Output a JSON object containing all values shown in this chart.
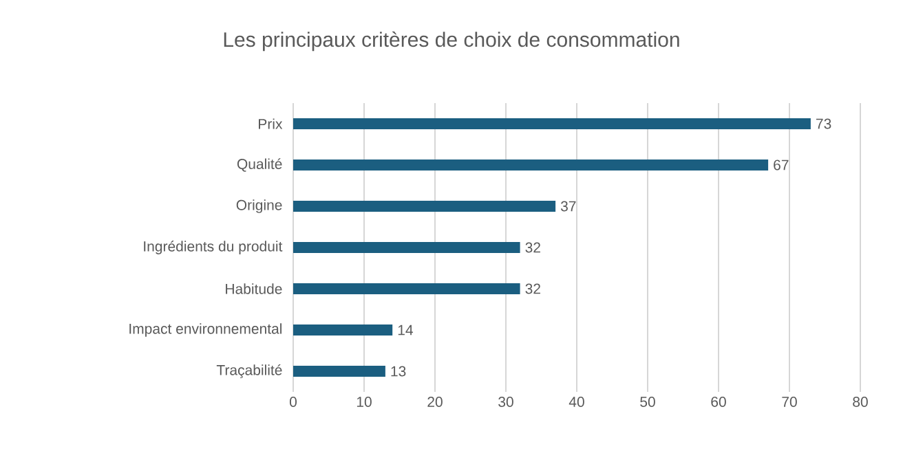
{
  "chart_data": {
    "type": "bar",
    "orientation": "horizontal",
    "title": "Les principaux critères de choix de consommation",
    "categories": [
      "Prix",
      "Qualité",
      "Origine",
      "Ingrédients du produit",
      "Habitude",
      "Impact environnemental",
      "Traçabilité"
    ],
    "values": [
      73,
      67,
      37,
      32,
      32,
      14,
      13
    ],
    "color": "#1b5e80",
    "xlim": [
      0,
      80
    ],
    "xticks": [
      0,
      10,
      20,
      30,
      40,
      50,
      60,
      70,
      80
    ],
    "grid": "x",
    "data_labels": true
  }
}
